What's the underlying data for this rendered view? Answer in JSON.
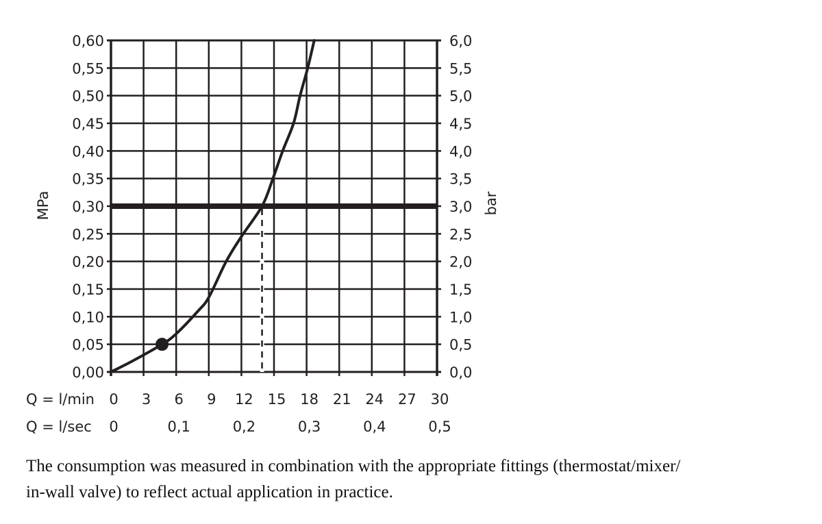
{
  "chart_data": {
    "type": "line",
    "title": "",
    "xlabel": "Q = l/min",
    "xlabel_secondary": "Q = l/sec",
    "ylabel": "MPa",
    "ylabel_secondary": "bar",
    "xlim": [
      0,
      30
    ],
    "ylim": [
      0,
      0.6
    ],
    "grid": true,
    "legend": null,
    "x_ticks": [
      "0",
      "3",
      "6",
      "9",
      "12",
      "15",
      "18",
      "21",
      "24",
      "27",
      "30"
    ],
    "x_ticks_secondary": [
      {
        "value": 0,
        "label": "0"
      },
      {
        "value": 6,
        "label": "0,1"
      },
      {
        "value": 12,
        "label": "0,2"
      },
      {
        "value": 18,
        "label": "0,3"
      },
      {
        "value": 24,
        "label": "0,4"
      },
      {
        "value": 30,
        "label": "0,5"
      }
    ],
    "y_ticks": [
      "0,00",
      "0,05",
      "0,10",
      "0,15",
      "0,20",
      "0,25",
      "0,30",
      "0,35",
      "0,40",
      "0,45",
      "0,50",
      "0,55",
      "0,60"
    ],
    "y_ticks_secondary": [
      "0,0",
      "0,5",
      "1,0",
      "1,5",
      "2,0",
      "2,5",
      "3,0",
      "3,5",
      "4,0",
      "4,5",
      "5,0",
      "5,5",
      "6,0"
    ],
    "series": [
      {
        "name": "flow curve",
        "x": [
          0,
          2.0,
          4.7,
          6.0,
          8.0,
          9.0,
          10.6,
          12.0,
          13.9,
          14.9,
          15.8,
          16.8,
          17.4,
          18.1,
          18.7
        ],
        "y": [
          0,
          0.02,
          0.05,
          0.069,
          0.11,
          0.135,
          0.2,
          0.245,
          0.3,
          0.35,
          0.4,
          0.45,
          0.5,
          0.55,
          0.6
        ]
      }
    ],
    "annotations": [
      {
        "type": "marker",
        "shape": "filled-circle",
        "x": 4.7,
        "y": 0.05,
        "label": "minimum flow point"
      },
      {
        "type": "hline",
        "y": 0.3,
        "style": "thick",
        "label": "reference pressure 0,3 MPa / 3 bar"
      },
      {
        "type": "vline",
        "x": 13.9,
        "y_range": [
          0,
          0.3
        ],
        "style": "dashed",
        "label": "flow at 3 bar"
      }
    ]
  },
  "caption": {
    "line1": "The consumption was measured in combination with the appropriate fittings (thermostat/mixer/",
    "line2": "in-wall valve) to reflect actual application in practice."
  },
  "colors": {
    "ink": "#231f20",
    "background": "#ffffff"
  }
}
